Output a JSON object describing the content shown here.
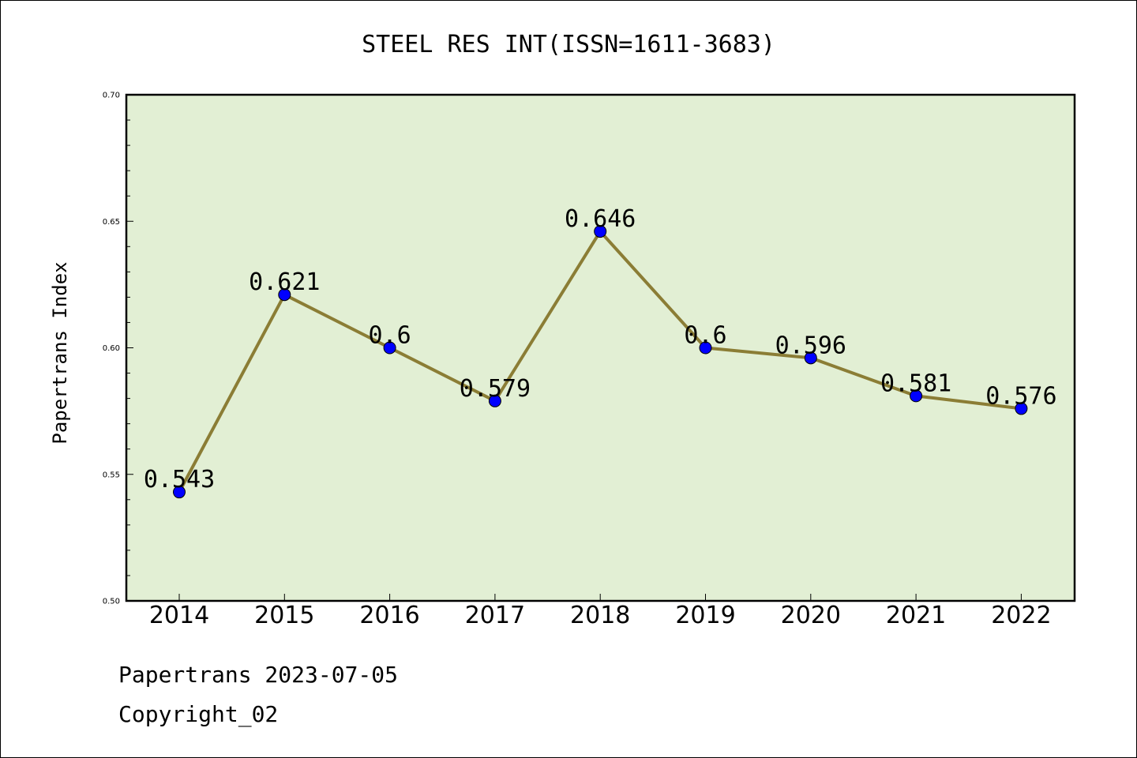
{
  "chart_data": {
    "type": "line",
    "title": "STEEL RES INT(ISSN=1611-3683)",
    "xlabel": "",
    "ylabel": "Papertrans Index",
    "categories": [
      "2014",
      "2015",
      "2016",
      "2017",
      "2018",
      "2019",
      "2020",
      "2021",
      "2022"
    ],
    "values": [
      0.543,
      0.621,
      0.6,
      0.579,
      0.646,
      0.6,
      0.596,
      0.581,
      0.576
    ],
    "data_labels": [
      "0.543",
      "0.621",
      "0.6",
      "0.579",
      "0.646",
      "0.6",
      "0.596",
      "0.581",
      "0.576"
    ],
    "ylim": [
      0.5,
      0.7
    ],
    "yticks": [
      "0.50",
      "0.55",
      "0.60",
      "0.65",
      "0.70"
    ],
    "grid": false,
    "legend": "none",
    "colors": {
      "plot_background": "#e2efd4",
      "line": "#8b7d35",
      "marker": "#0000ff"
    }
  },
  "footer": {
    "line1": "Papertrans 2023-07-05",
    "line2": "Copyright_02"
  }
}
